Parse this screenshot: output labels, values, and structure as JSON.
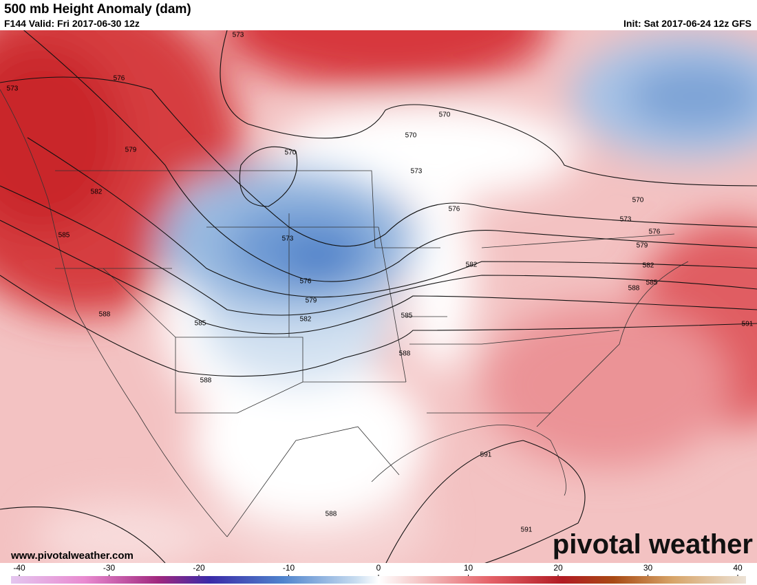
{
  "header": {
    "title": "500 mb Height Anomaly (dam)",
    "valid": "F144 Valid: Fri 2017-06-30 12z",
    "init": "Init: Sat 2017-06-24 12z GFS"
  },
  "map": {
    "contour_labels": [
      573,
      573,
      576,
      579,
      582,
      585,
      588,
      585,
      588,
      570,
      570,
      570,
      573,
      576,
      573,
      576,
      579,
      582,
      585,
      588,
      582,
      570,
      573,
      576,
      579,
      582,
      585,
      588,
      591,
      591,
      588,
      591
    ]
  },
  "footer": {
    "website": "www.pivotalweather.com",
    "logo": "pivotal weather"
  },
  "colorbar": {
    "lim": [
      -40,
      40
    ],
    "ticks": [
      -40,
      -30,
      -20,
      -10,
      0,
      10,
      20,
      30,
      40
    ]
  }
}
